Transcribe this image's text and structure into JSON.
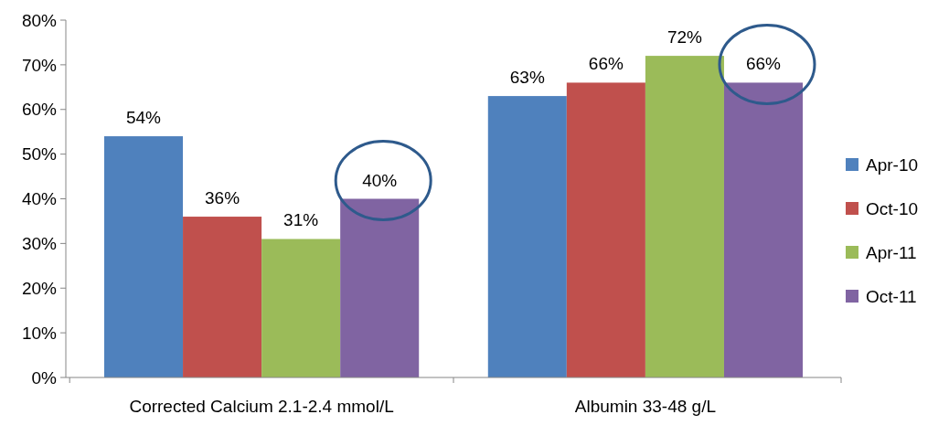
{
  "chart_data": {
    "type": "bar",
    "categories": [
      "Corrected Calcium 2.1-2.4 mmol/L",
      "Albumin 33-48 g/L"
    ],
    "series": [
      {
        "name": "Apr-10",
        "color": "#4f81bd",
        "values": [
          54,
          63
        ],
        "value_labels": [
          "54%",
          "63%"
        ]
      },
      {
        "name": "Oct-10",
        "color": "#c0504d",
        "values": [
          36,
          66
        ],
        "value_labels": [
          "36%",
          "66%"
        ]
      },
      {
        "name": "Apr-11",
        "color": "#9bbb59",
        "values": [
          31,
          72
        ],
        "value_labels": [
          "31%",
          "72%"
        ]
      },
      {
        "name": "Oct-11",
        "color": "#8064a2",
        "values": [
          40,
          66
        ],
        "value_labels": [
          "40%",
          "66%"
        ]
      }
    ],
    "ylim": [
      0,
      80
    ],
    "yticks": [
      {
        "value": 0,
        "label": "0%"
      },
      {
        "value": 10,
        "label": "10%"
      },
      {
        "value": 20,
        "label": "20%"
      },
      {
        "value": 30,
        "label": "30%"
      },
      {
        "value": 40,
        "label": "40%"
      },
      {
        "value": 50,
        "label": "50%"
      },
      {
        "value": 60,
        "label": "60%"
      },
      {
        "value": 70,
        "label": "70%"
      },
      {
        "value": 80,
        "label": "80%"
      }
    ],
    "legend": "right",
    "grid": false
  }
}
